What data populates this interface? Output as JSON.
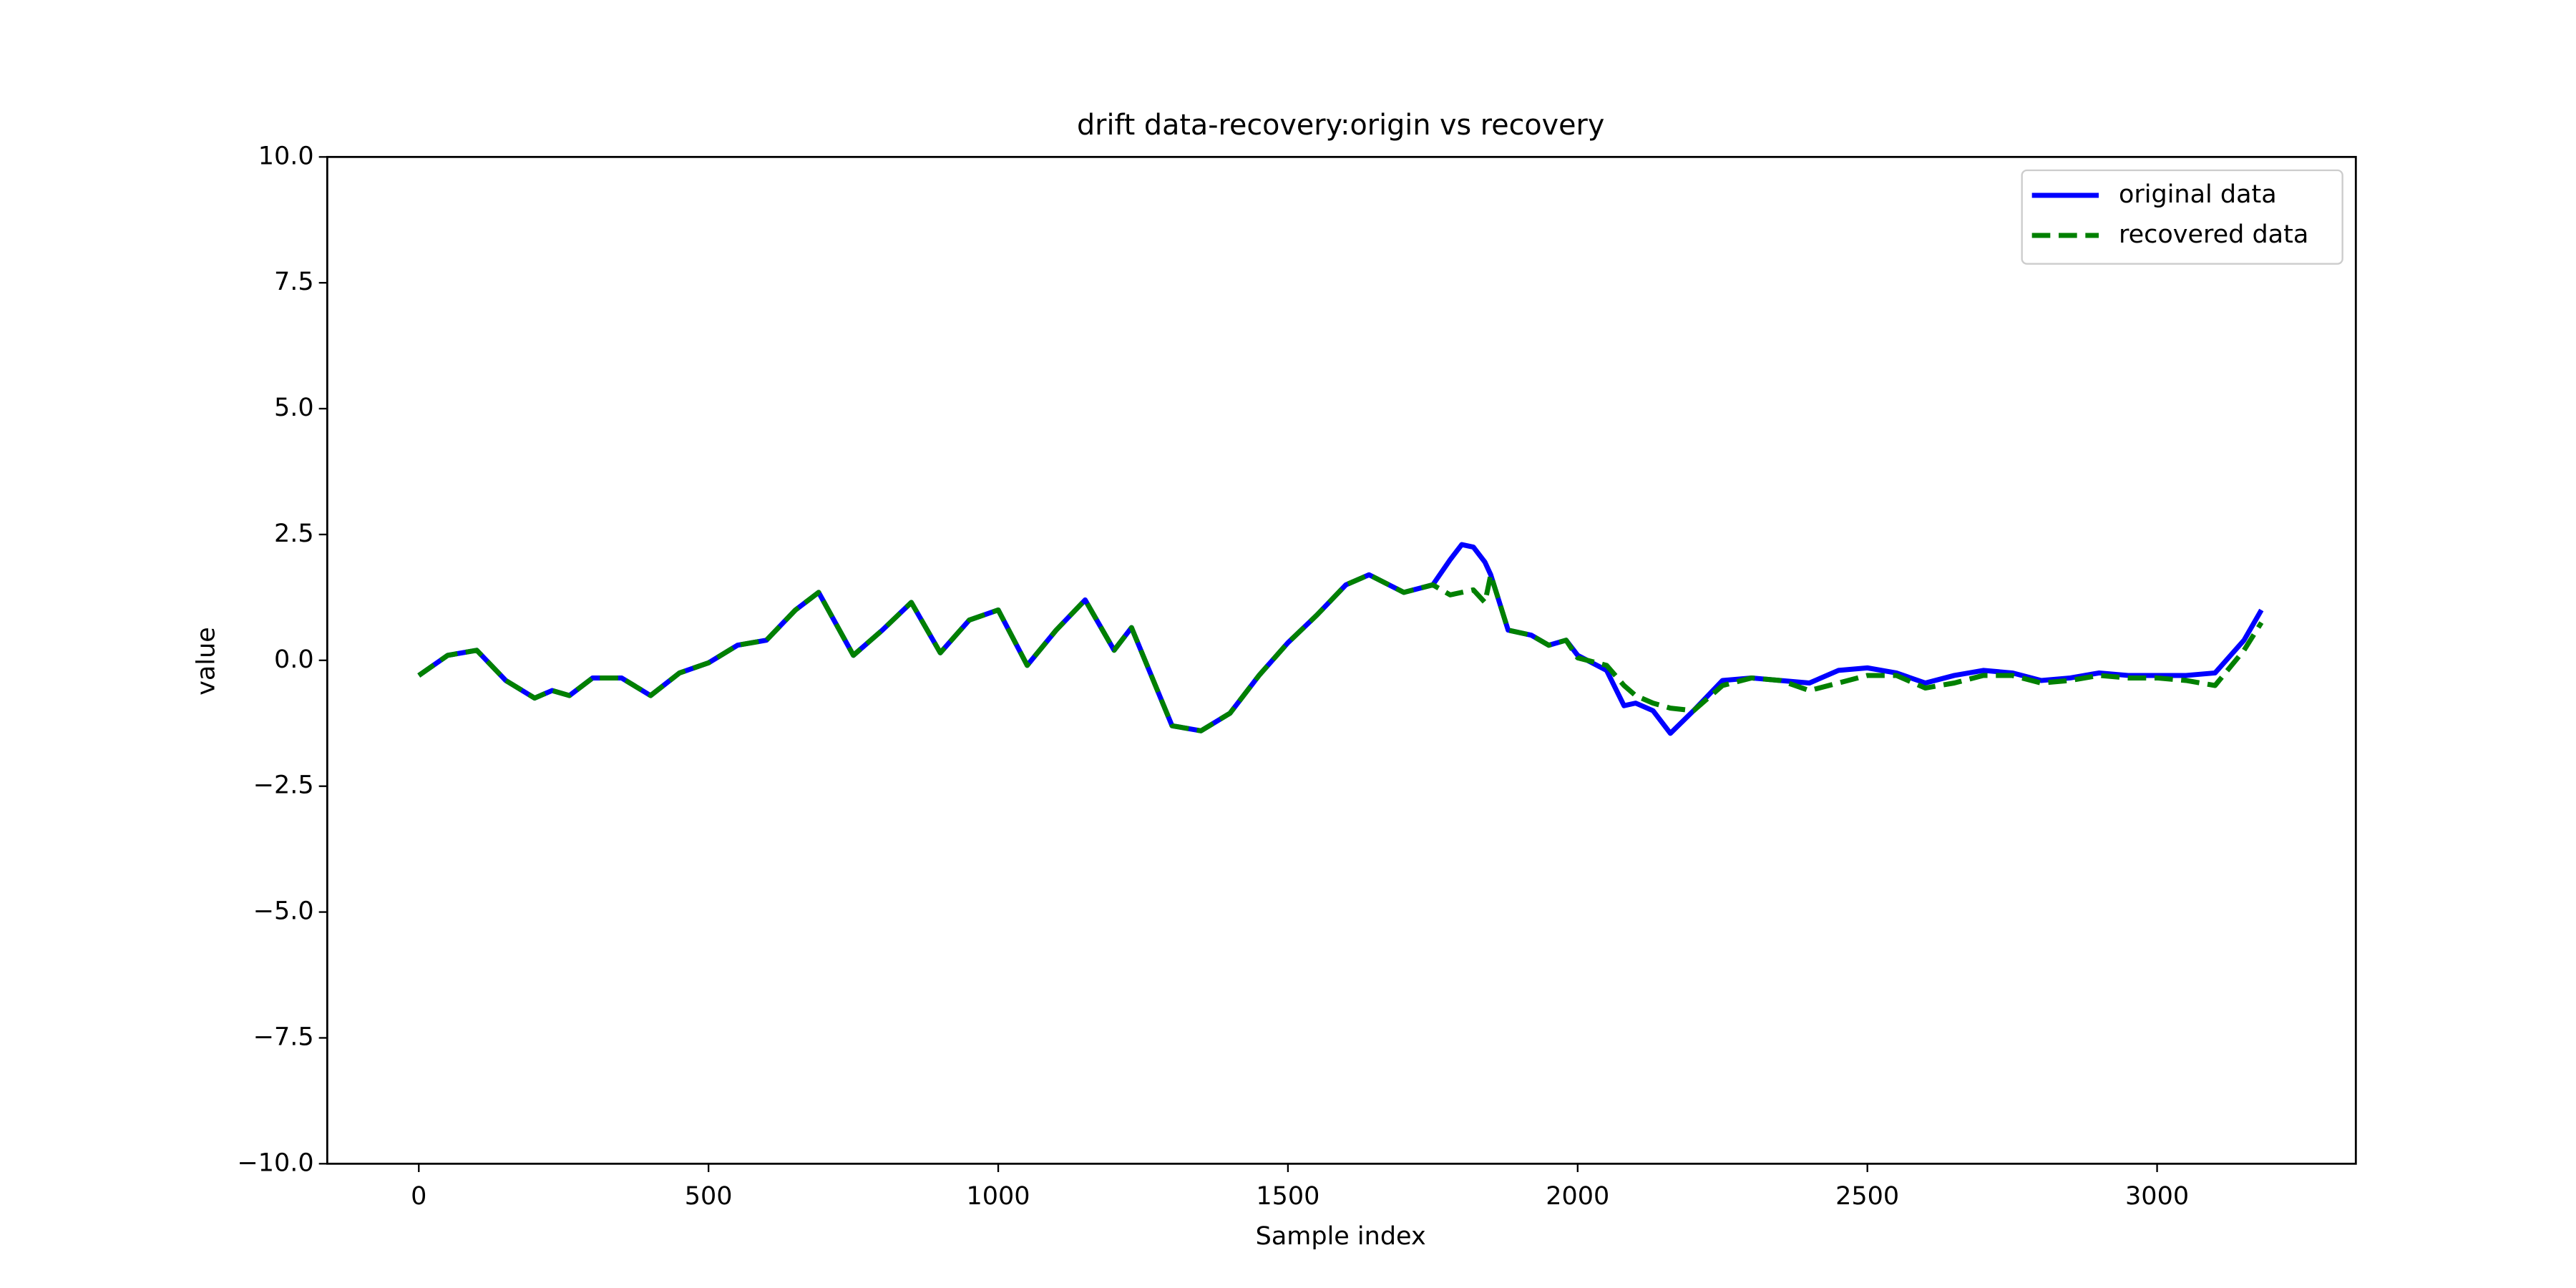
{
  "chart_data": {
    "type": "line",
    "title": "drift data-recovery:origin vs recovery",
    "x_label": "Sample index",
    "y_label": "value",
    "x": [
      0,
      50,
      100,
      150,
      200,
      230,
      260,
      300,
      350,
      400,
      450,
      500,
      550,
      600,
      650,
      690,
      750,
      800,
      850,
      900,
      950,
      1000,
      1050,
      1100,
      1150,
      1200,
      1230,
      1300,
      1350,
      1400,
      1450,
      1500,
      1550,
      1600,
      1640,
      1700,
      1750,
      1780,
      1800,
      1820,
      1840,
      1850,
      1880,
      1920,
      1950,
      1980,
      2000,
      2050,
      2080,
      2100,
      2130,
      2160,
      2200,
      2250,
      2300,
      2350,
      2400,
      2450,
      2500,
      2550,
      2600,
      2650,
      2700,
      2750,
      2800,
      2850,
      2900,
      2950,
      3000,
      3050,
      3100,
      3150,
      3180
    ],
    "series": [
      {
        "name": "original data",
        "color": "#0000ff",
        "dash": "solid",
        "values": [
          -0.3,
          0.1,
          0.2,
          -0.4,
          -0.75,
          -0.6,
          -0.7,
          -0.35,
          -0.35,
          -0.7,
          -0.25,
          -0.05,
          0.3,
          0.4,
          1.0,
          1.35,
          0.1,
          0.6,
          1.15,
          0.15,
          0.8,
          1.0,
          -0.1,
          0.6,
          1.2,
          0.2,
          0.65,
          -1.3,
          -1.4,
          -1.05,
          -0.3,
          0.35,
          0.9,
          1.5,
          1.7,
          1.35,
          1.5,
          2.0,
          2.3,
          2.25,
          1.95,
          1.7,
          0.6,
          0.5,
          0.3,
          0.4,
          0.1,
          -0.2,
          -0.9,
          -0.85,
          -1.0,
          -1.45,
          -1.0,
          -0.4,
          -0.35,
          -0.4,
          -0.45,
          -0.2,
          -0.15,
          -0.25,
          -0.45,
          -0.3,
          -0.2,
          -0.25,
          -0.4,
          -0.35,
          -0.25,
          -0.3,
          -0.3,
          -0.3,
          -0.25,
          0.4,
          1.0
        ]
      },
      {
        "name": "recovered data",
        "color": "#008000",
        "dash": "dashed",
        "values": [
          -0.3,
          0.1,
          0.2,
          -0.4,
          -0.75,
          -0.6,
          -0.7,
          -0.35,
          -0.35,
          -0.7,
          -0.25,
          -0.05,
          0.3,
          0.4,
          1.0,
          1.35,
          0.1,
          0.6,
          1.15,
          0.15,
          0.8,
          1.0,
          -0.1,
          0.6,
          1.2,
          0.2,
          0.65,
          -1.3,
          -1.4,
          -1.05,
          -0.3,
          0.35,
          0.9,
          1.5,
          1.7,
          1.35,
          1.5,
          1.3,
          1.35,
          1.4,
          1.15,
          1.7,
          0.6,
          0.5,
          0.3,
          0.4,
          0.05,
          -0.1,
          -0.5,
          -0.7,
          -0.85,
          -0.95,
          -1.0,
          -0.5,
          -0.35,
          -0.4,
          -0.6,
          -0.45,
          -0.3,
          -0.3,
          -0.55,
          -0.45,
          -0.3,
          -0.3,
          -0.45,
          -0.4,
          -0.3,
          -0.35,
          -0.35,
          -0.4,
          -0.5,
          0.2,
          0.75
        ]
      }
    ],
    "xlim": [
      -158,
      3343
    ],
    "xticks": [
      0,
      500,
      1000,
      1500,
      2000,
      2500,
      3000
    ],
    "ylim": [
      -10,
      10
    ],
    "yticks": [
      {
        "value": -10,
        "label": "−10.0"
      },
      {
        "value": -7.5,
        "label": "−7.5"
      },
      {
        "value": -5,
        "label": "−5.0"
      },
      {
        "value": -2.5,
        "label": "−2.5"
      },
      {
        "value": 0,
        "label": "0.0"
      },
      {
        "value": 2.5,
        "label": "2.5"
      },
      {
        "value": 5,
        "label": "5.0"
      },
      {
        "value": 7.5,
        "label": "7.5"
      },
      {
        "value": 10,
        "label": "10.0"
      }
    ],
    "legend": "upper right",
    "grid": false
  }
}
